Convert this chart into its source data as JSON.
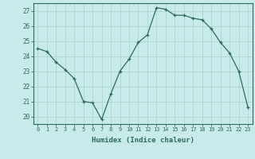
{
  "x": [
    0,
    1,
    2,
    3,
    4,
    5,
    6,
    7,
    8,
    9,
    10,
    11,
    12,
    13,
    14,
    15,
    16,
    17,
    18,
    19,
    20,
    21,
    22,
    23
  ],
  "y": [
    24.5,
    24.3,
    23.6,
    23.1,
    22.5,
    21.0,
    20.9,
    19.8,
    21.5,
    23.0,
    23.8,
    24.9,
    25.4,
    27.2,
    27.1,
    26.7,
    26.7,
    26.5,
    26.4,
    25.8,
    24.9,
    24.2,
    23.0,
    20.6
  ],
  "xlabel": "Humidex (Indice chaleur)",
  "ylim": [
    19.5,
    27.5
  ],
  "xlim": [
    -0.5,
    23.5
  ],
  "yticks": [
    20,
    21,
    22,
    23,
    24,
    25,
    26,
    27
  ],
  "xticks": [
    0,
    1,
    2,
    3,
    4,
    5,
    6,
    7,
    8,
    9,
    10,
    11,
    12,
    13,
    14,
    15,
    16,
    17,
    18,
    19,
    20,
    21,
    22,
    23
  ],
  "line_color": "#2e6b5e",
  "marker": "+",
  "bg_color": "#c8eaea",
  "grid_color": "#aed4d0",
  "spine_color": "#2e6b5e",
  "tick_color": "#2e6b5e",
  "label_color": "#2e6b5e"
}
